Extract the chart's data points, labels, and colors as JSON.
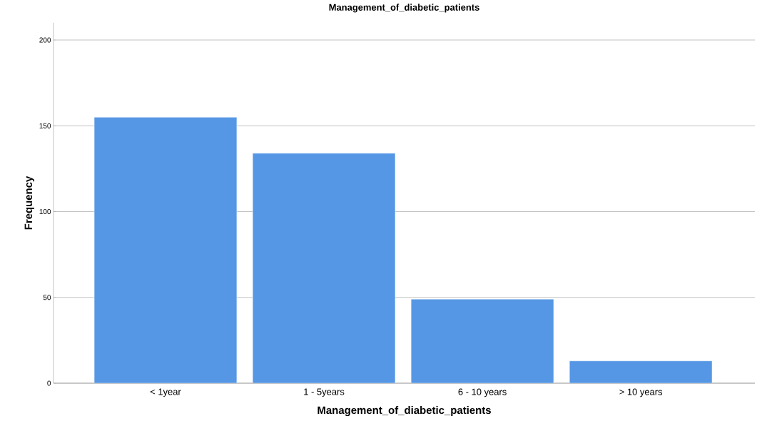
{
  "chart_data": {
    "type": "bar",
    "title": "Management_of_diabetic_patients",
    "xlabel": "Management_of_diabetic_patients",
    "ylabel": "Frequency",
    "categories": [
      "< 1year",
      "1 - 5years",
      "6 - 10 years",
      "> 10 years"
    ],
    "values": [
      155,
      134,
      49,
      13
    ],
    "color": "#5597e4",
    "ylim": [
      0,
      210
    ],
    "yticks": [
      0,
      50,
      100,
      150,
      200
    ],
    "grid": "y"
  }
}
